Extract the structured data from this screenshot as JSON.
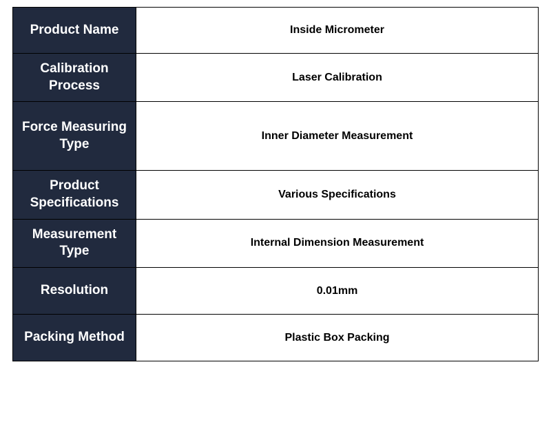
{
  "table": {
    "label_bg": "#212a3e",
    "label_color": "#ffffff",
    "value_bg": "#ffffff",
    "value_color": "#000000",
    "border_color": "#000000",
    "label_fontsize": 19,
    "value_fontsize": 16,
    "label_width": 180,
    "rows": [
      {
        "label": "Product Name",
        "value": "Inside Micrometer",
        "tall": false
      },
      {
        "label": "Calibration Process",
        "value": "Laser Calibration",
        "tall": false
      },
      {
        "label": "Force Measuring Type",
        "value": "Inner Diameter Measurement",
        "tall": true
      },
      {
        "label": "Product Specifications",
        "value": "Various Specifications",
        "tall": false
      },
      {
        "label": "Measurement Type",
        "value": "Internal Dimension Measurement",
        "tall": false
      },
      {
        "label": "Resolution",
        "value": "0.01mm",
        "tall": false
      },
      {
        "label": "Packing Method",
        "value": "Plastic Box Packing",
        "tall": false
      }
    ]
  }
}
